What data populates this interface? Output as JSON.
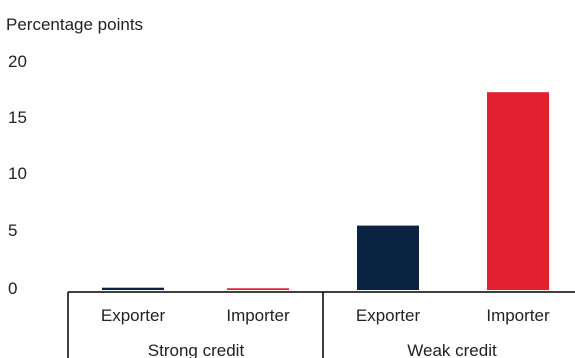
{
  "chart_data": {
    "type": "bar",
    "ylabel": "Percentage points",
    "ylim": [
      0,
      20
    ],
    "yticks": [
      "20",
      "15",
      "10",
      "5",
      "0"
    ],
    "groups": [
      {
        "label": "Strong credit",
        "bars": [
          {
            "category": "Exporter",
            "value": 0.2,
            "color": "#0b2342"
          },
          {
            "category": "Importer",
            "value": 0.15,
            "color": "#e3202f"
          }
        ]
      },
      {
        "label": "Weak credit",
        "bars": [
          {
            "category": "Exporter",
            "value": 5.6,
            "color": "#0b2342"
          },
          {
            "category": "Importer",
            "value": 17.2,
            "color": "#e3202f"
          }
        ]
      }
    ]
  }
}
